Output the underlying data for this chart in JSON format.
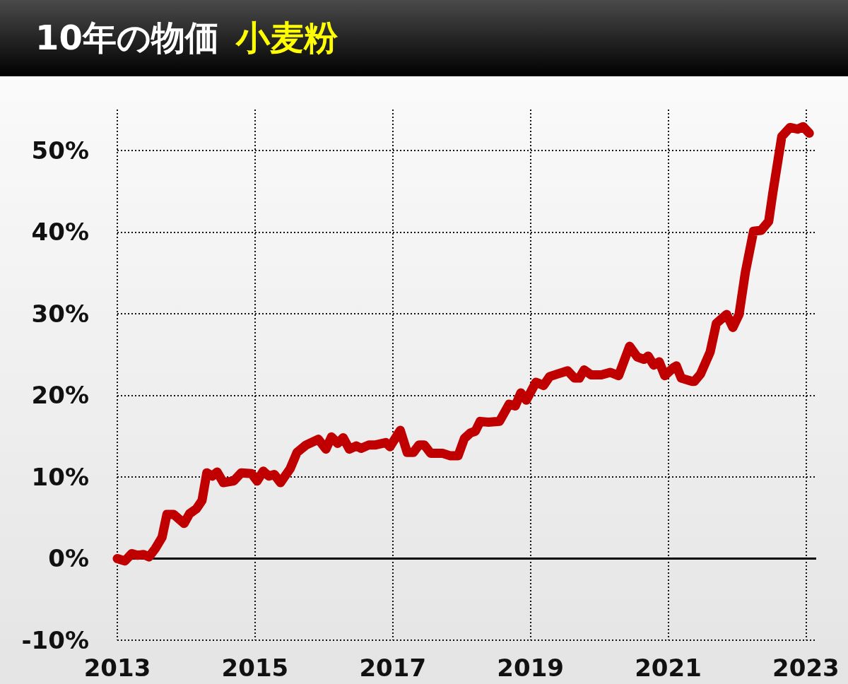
{
  "chart_data": {
    "type": "line",
    "title": "10年の物価",
    "subtitle": "小麦粉",
    "x": [
      2013,
      2013.11,
      2013.21,
      2013.29,
      2013.38,
      2013.46,
      2013.55,
      2013.65,
      2013.72,
      2013.82,
      2013.97,
      2014.05,
      2014.15,
      2014.23,
      2014.3,
      2014.38,
      2014.45,
      2014.54,
      2014.69,
      2014.8,
      2014.95,
      2015.03,
      2015.12,
      2015.2,
      2015.28,
      2015.37,
      2015.51,
      2015.61,
      2015.74,
      2015.92,
      2016.03,
      2016.11,
      2016.2,
      2016.28,
      2016.37,
      2016.47,
      2016.54,
      2016.65,
      2016.74,
      2016.9,
      2016.96,
      2017.11,
      2017.21,
      2017.3,
      2017.38,
      2017.46,
      2017.55,
      2017.72,
      2017.83,
      2017.95,
      2018.04,
      2018.13,
      2018.2,
      2018.27,
      2018.39,
      2018.55,
      2018.69,
      2018.78,
      2018.86,
      2018.94,
      2019.08,
      2019.19,
      2019.28,
      2019.39,
      2019.54,
      2019.64,
      2019.71,
      2019.78,
      2019.88,
      2020.03,
      2020.16,
      2020.28,
      2020.44,
      2020.55,
      2020.65,
      2020.71,
      2020.79,
      2020.87,
      2020.95,
      2021.08,
      2021.12,
      2021.19,
      2021.35,
      2021.38,
      2021.47,
      2021.61,
      2021.7,
      2021.85,
      2021.94,
      2022.03,
      2022.12,
      2022.24,
      2022.35,
      2022.46,
      2022.52,
      2022.65,
      2022.77,
      2022.88,
      2022.96,
      2023.05
    ],
    "series": [
      {
        "color": "#c00000",
        "values": [
          0,
          -0.3,
          0.6,
          0.4,
          0.5,
          0.2,
          1.2,
          2.6,
          5.4,
          5.4,
          4.3,
          5.5,
          6.1,
          7.1,
          10.5,
          10.1,
          10.6,
          9.3,
          9.5,
          10.5,
          10.4,
          9.5,
          10.7,
          10.1,
          10.3,
          9.3,
          11,
          13,
          13.9,
          14.6,
          13.4,
          14.9,
          14.1,
          14.8,
          13.4,
          13.8,
          13.5,
          13.9,
          13.9,
          14.2,
          13.7,
          15.7,
          13,
          13,
          13.9,
          13.9,
          12.9,
          12.9,
          12.6,
          12.6,
          14.7,
          15.4,
          15.6,
          16.8,
          16.7,
          16.8,
          18.9,
          18.7,
          20.3,
          19.4,
          21.6,
          21.2,
          22.3,
          22.6,
          23,
          22.1,
          22.1,
          23.1,
          22.5,
          22.5,
          22.8,
          22.4,
          26,
          24.7,
          24.4,
          24.8,
          23.7,
          24.1,
          22.4,
          23.4,
          23.6,
          22.1,
          21.7,
          21.7,
          22.6,
          25.3,
          28.8,
          29.9,
          28.3,
          29.9,
          35,
          40.1,
          40.2,
          41.3,
          44.8,
          51.7,
          52.8,
          52.6,
          52.9,
          52.1
        ]
      }
    ],
    "xlim": [
      2013,
      2023.15
    ],
    "xticks": [
      2013,
      2015,
      2017,
      2019,
      2021,
      2023
    ],
    "ylim": [
      -10,
      55
    ],
    "yticks": [
      {
        "value": -10,
        "label": "-10%"
      },
      {
        "value": 0,
        "label": "0%"
      },
      {
        "value": 10,
        "label": "10%"
      },
      {
        "value": 20,
        "label": "20%"
      },
      {
        "value": 30,
        "label": "30%"
      },
      {
        "value": 40,
        "label": "40%"
      },
      {
        "value": 50,
        "label": "50%"
      }
    ],
    "ref_lines": [
      {
        "axis": "y",
        "value": 0,
        "color": "#000000",
        "line_style": "solid"
      }
    ],
    "grid": true,
    "line_style": "solid"
  }
}
